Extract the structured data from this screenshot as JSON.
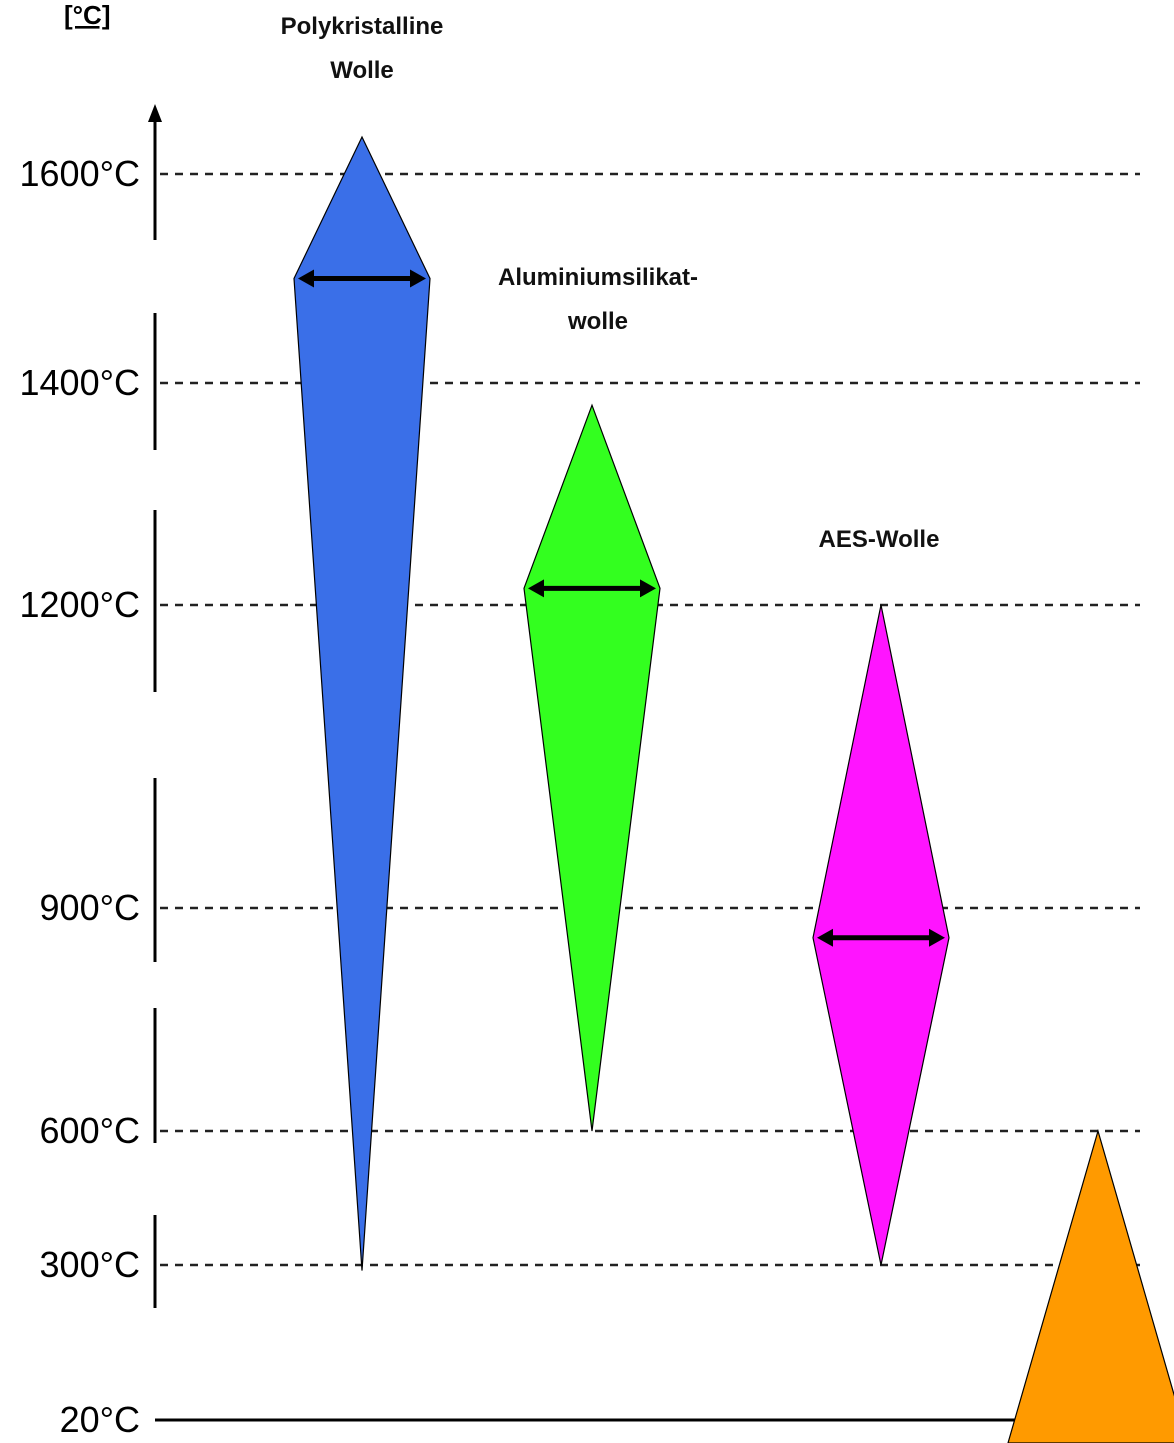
{
  "unit_label": "[°C]",
  "chart_data": {
    "type": "diagram",
    "y_axis": {
      "ticks": [
        {
          "value": 1600,
          "label": "1600°C"
        },
        {
          "value": 1400,
          "label": "1400°C"
        },
        {
          "value": 1200,
          "label": "1200°C"
        },
        {
          "value": 900,
          "label": "900°C"
        },
        {
          "value": 600,
          "label": "600°C"
        },
        {
          "value": 300,
          "label": "300°C"
        },
        {
          "value": 20,
          "label": "20°C"
        }
      ]
    },
    "series": [
      {
        "name_lines": [
          "Polykristalline",
          "Wolle"
        ],
        "color": "#3a6fe8",
        "max_temp": 1650,
        "typical_temp": 1500,
        "min_temp": 290
      },
      {
        "name_lines": [
          "Aluminiumsilikat-",
          "wolle"
        ],
        "color": "#33ff1f",
        "max_temp": 1380,
        "typical_temp": 1215,
        "min_temp": 600
      },
      {
        "name_lines": [
          "AES-Wolle"
        ],
        "color": "#ff14ff",
        "max_temp": 1200,
        "typical_temp": 860,
        "min_temp": 300
      },
      {
        "name_lines": [],
        "color": "#ff9a00",
        "max_temp": 600,
        "typical_temp": null,
        "min_temp": 20
      }
    ]
  }
}
